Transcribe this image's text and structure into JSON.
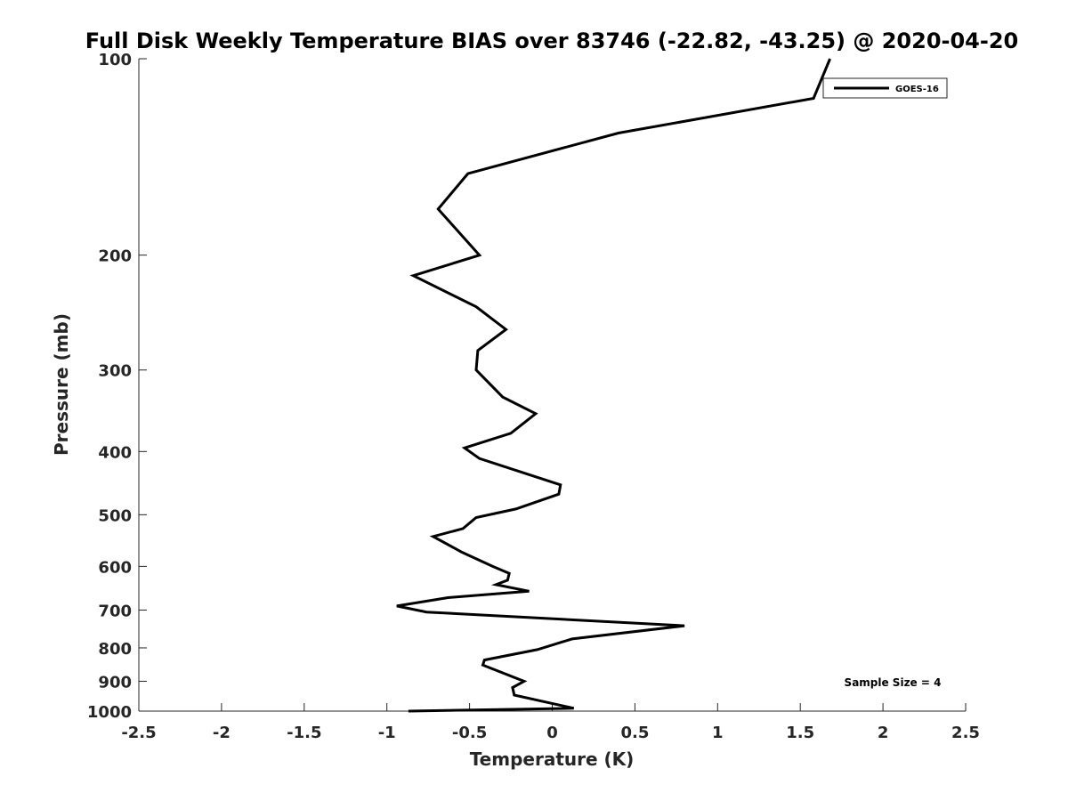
{
  "chart_data": {
    "type": "line",
    "title": "Full Disk Weekly Temperature BIAS over 83746 (-22.82, -43.25) @ 2020-04-20",
    "xlabel": "Temperature (K)",
    "ylabel": "Pressure (mb)",
    "xlim": [
      -2.5,
      2.5
    ],
    "ylim": [
      100,
      1000
    ],
    "y_scale": "log",
    "y_reversed": true,
    "x_ticks": [
      -2.5,
      -2,
      -1.5,
      -1,
      -0.5,
      0,
      0.5,
      1,
      1.5,
      2,
      2.5
    ],
    "x_tick_labels": [
      "-2.5",
      "-2",
      "-1.5",
      "-1",
      "-0.5",
      "0",
      "0.5",
      "1",
      "1.5",
      "2",
      "2.5"
    ],
    "y_ticks": [
      100,
      200,
      300,
      400,
      500,
      600,
      700,
      800,
      900,
      1000
    ],
    "y_tick_labels": [
      "100",
      "200",
      "300",
      "400",
      "500",
      "600",
      "700",
      "800",
      "900",
      "1000"
    ],
    "grid": false,
    "legend_position": "top-right",
    "annotation": "Sample Size = 4",
    "series": [
      {
        "name": "GOES-16",
        "color": "#000000",
        "x": [
          1.68,
          1.58,
          0.4,
          -0.51,
          -0.69,
          -0.44,
          -0.84,
          -0.46,
          -0.28,
          -0.45,
          -0.46,
          -0.3,
          -0.1,
          -0.25,
          -0.53,
          -0.44,
          0.05,
          0.04,
          -0.22,
          -0.46,
          -0.54,
          -0.72,
          -0.55,
          -0.36,
          -0.26,
          -0.27,
          -0.34,
          -0.14,
          -0.63,
          -0.94,
          -0.76,
          0.8,
          0.12,
          -0.09,
          -0.41,
          -0.42,
          -0.17,
          -0.24,
          -0.23,
          0.13,
          -0.87
        ],
        "y": [
          100,
          115,
          130,
          150,
          170,
          200,
          215,
          240,
          260,
          280,
          300,
          330,
          350,
          375,
          395,
          410,
          450,
          465,
          490,
          505,
          525,
          540,
          570,
          600,
          615,
          630,
          640,
          655,
          670,
          690,
          705,
          740,
          775,
          805,
          835,
          850,
          900,
          920,
          945,
          990,
          1000
        ]
      }
    ]
  }
}
